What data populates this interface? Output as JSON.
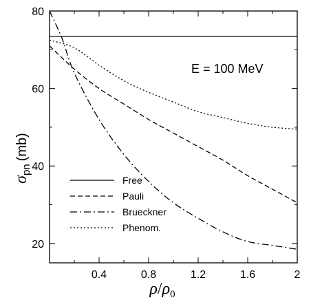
{
  "chart_data": {
    "type": "line",
    "annotation": "E = 100 MeV",
    "ylabel": {
      "symbol": "σ",
      "subscript": "pn",
      "unit": "(mb)"
    },
    "xlabel": {
      "num": "ρ",
      "den": "ρ",
      "den_sub": "0"
    },
    "xlim": [
      0.0,
      2.0
    ],
    "ylim": [
      15,
      80
    ],
    "xticks": [
      0.4,
      0.8,
      1.2,
      1.6,
      2.0
    ],
    "xtick_labels": [
      "0.4",
      "0.8",
      "1.2",
      "1.6",
      "2"
    ],
    "yticks": [
      20,
      40,
      60,
      80
    ],
    "ytick_labels": [
      "20",
      "40",
      "60",
      "80"
    ],
    "grid": false,
    "legend_position": "bottom-left",
    "series": [
      {
        "name": "Free",
        "dash": "none",
        "x": [
          0.0,
          2.0
        ],
        "y": [
          73.5,
          73.5
        ]
      },
      {
        "name": "Pauli",
        "dash": "7,4",
        "x": [
          0.0,
          0.2,
          0.4,
          0.6,
          0.8,
          1.0,
          1.2,
          1.4,
          1.6,
          1.8,
          2.0
        ],
        "y": [
          71.0,
          65.0,
          60.0,
          56.0,
          52.0,
          48.5,
          45.0,
          41.5,
          37.5,
          34.0,
          30.5
        ]
      },
      {
        "name": "Brueckner",
        "dash": "10,4,2,4",
        "x": [
          0.0,
          0.1,
          0.2,
          0.4,
          0.6,
          0.8,
          1.0,
          1.2,
          1.4,
          1.6,
          1.8,
          2.0
        ],
        "y": [
          80.0,
          73.0,
          64.0,
          52.0,
          43.0,
          36.0,
          30.5,
          26.5,
          23.0,
          20.5,
          19.5,
          18.5
        ]
      },
      {
        "name": "Phenom.",
        "dash": "2,3",
        "x": [
          0.0,
          0.2,
          0.4,
          0.6,
          0.8,
          1.0,
          1.2,
          1.4,
          1.6,
          1.8,
          2.0
        ],
        "y": [
          72.5,
          70.5,
          66.0,
          62.0,
          59.0,
          56.5,
          54.0,
          52.5,
          51.0,
          50.0,
          49.5
        ]
      }
    ]
  }
}
